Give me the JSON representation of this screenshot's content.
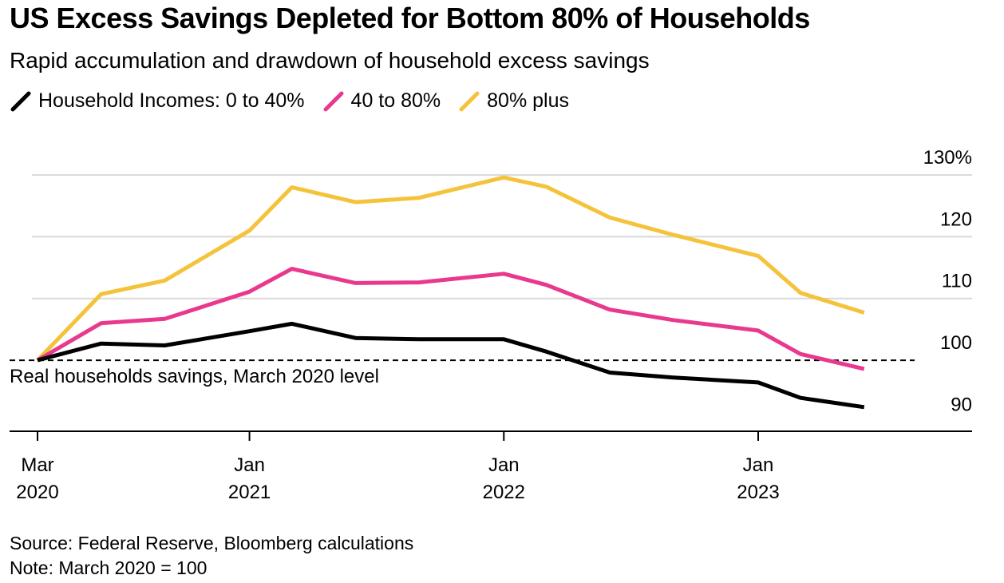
{
  "title": "US Excess Savings Depleted for Bottom 80% of Households",
  "subtitle": "Rapid accumulation and drawdown of household excess savings",
  "legend": {
    "items": [
      {
        "label": "Household Incomes: 0 to 40%",
        "color": "#000000"
      },
      {
        "label": "40 to 80%",
        "color": "#e8398e"
      },
      {
        "label": "80% plus",
        "color": "#f5c33b"
      }
    ]
  },
  "footer": {
    "source": "Source: Federal Reserve, Bloomberg calculations",
    "note": "Note: March 2020 = 100"
  },
  "chart_data": {
    "type": "line",
    "x": [
      "2020-03",
      "2020-06",
      "2020-09",
      "2021-01",
      "2021-03",
      "2021-06",
      "2021-09",
      "2022-01",
      "2022-03",
      "2022-06",
      "2022-09",
      "2023-01",
      "2023-03",
      "2023-06"
    ],
    "series": [
      {
        "name": "Household Incomes: 0 to 40%",
        "color": "#000000",
        "values": [
          100,
          102.7,
          102.4,
          104.7,
          105.9,
          103.6,
          103.4,
          103.4,
          101.4,
          98.0,
          97.2,
          96.4,
          93.9,
          92.4
        ]
      },
      {
        "name": "40 to 80%",
        "color": "#e8398e",
        "values": [
          100,
          106.0,
          106.7,
          111.1,
          114.8,
          112.5,
          112.6,
          114.0,
          112.2,
          108.2,
          106.5,
          104.8,
          101.0,
          98.6
        ]
      },
      {
        "name": "80% plus",
        "color": "#f5c33b",
        "values": [
          100,
          110.7,
          112.9,
          121.0,
          128.0,
          125.6,
          126.3,
          129.6,
          128.1,
          123.1,
          120.3,
          116.9,
          110.9,
          107.7
        ]
      }
    ],
    "y_ticks": [
      "130%",
      "120",
      "110",
      "100",
      "90"
    ],
    "y_tick_values": [
      130,
      120,
      110,
      100,
      90
    ],
    "ylim": [
      88.5,
      133.5
    ],
    "x_ticks": [
      {
        "x": "2020-03",
        "line1": "Mar",
        "line2": "2020"
      },
      {
        "x": "2021-01",
        "line1": "Jan",
        "line2": "2021"
      },
      {
        "x": "2022-01",
        "line1": "Jan",
        "line2": "2022"
      },
      {
        "x": "2023-01",
        "line1": "Jan",
        "line2": "2023"
      }
    ],
    "reference_line": {
      "value": 100,
      "label": "Real households savings, March 2020 level",
      "style": "dashed"
    },
    "grid": true
  }
}
